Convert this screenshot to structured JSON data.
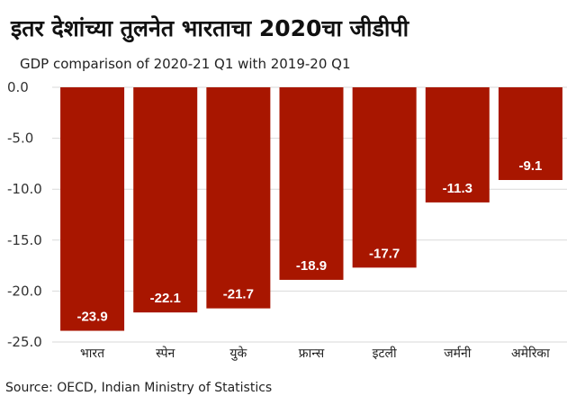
{
  "title": "इतर देशांच्या तुलनेत भारताचा 2020चा जीडीपी",
  "subtitle": "GDP comparison of 2020-21 Q1 with 2019-20 Q1",
  "source": "Source: OECD, Indian Ministry of Statistics",
  "chart_data": {
    "type": "bar",
    "title": "इतर देशांच्या तुलनेत भारताचा 2020चा जीडीपी",
    "subtitle": "GDP comparison of 2020-21 Q1 with 2019-20 Q1",
    "categories": [
      "भारत",
      "स्पेन",
      "युके",
      "फ्रान्स",
      "इटली",
      "जर्मनी",
      "अमेरिका"
    ],
    "values": [
      -23.9,
      -22.1,
      -21.7,
      -18.9,
      -17.7,
      -11.3,
      -9.1
    ],
    "data_labels": [
      "-23.9",
      "-22.1",
      "-21.7",
      "-18.9",
      "-17.7",
      "-11.3",
      "-9.1"
    ],
    "y_ticks": [
      0,
      -5,
      -10,
      -15,
      -20,
      -25
    ],
    "y_tick_labels": [
      "0.0",
      "-5.0",
      "-10.0",
      "-15.0",
      "-20.0",
      "-25.0"
    ],
    "ylim": [
      -25,
      0
    ],
    "grid": true,
    "xlabel": "",
    "ylabel": "",
    "bar_color": "#a81600",
    "grid_color": "#d9d9d9"
  }
}
